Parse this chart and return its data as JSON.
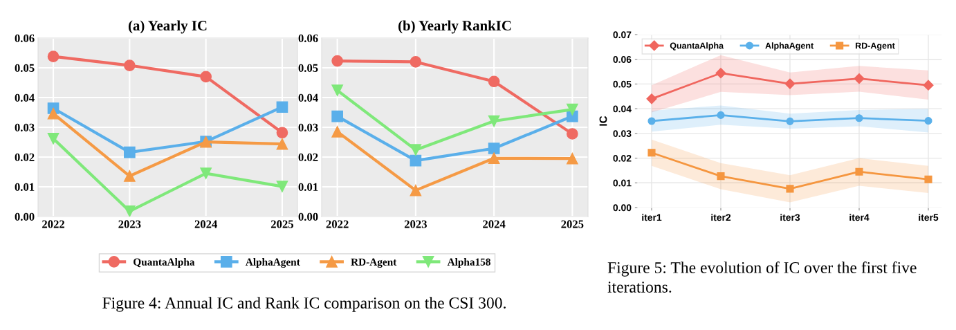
{
  "chart_data": [
    {
      "type": "line",
      "title": "(a) Yearly IC",
      "x": [
        2022,
        2023,
        2024,
        2025
      ],
      "xlim": [
        2021.8,
        2025.2
      ],
      "xticks": [
        2022,
        2023,
        2024,
        2025
      ],
      "ylim": [
        0,
        0.06
      ],
      "yticks": [
        {
          "value": 0,
          "label": "0.00"
        },
        {
          "value": 0.01,
          "label": "0.01"
        },
        {
          "value": 0.02,
          "label": "0.02"
        },
        {
          "value": 0.03,
          "label": "0.03"
        },
        {
          "value": 0.04,
          "label": "0.04"
        },
        {
          "value": 0.05,
          "label": "0.05"
        },
        {
          "value": 0.06,
          "label": "0.06"
        }
      ],
      "grid": true,
      "legend": "bottom",
      "annotations": [
        "Figure 4: Annual IC and Rank IC comparison on the CSI 300."
      ],
      "series": [
        {
          "name": "QuantaAlpha",
          "color": "#ef6a62",
          "marker": "circle",
          "values": [
            0.0538,
            0.0508,
            0.047,
            0.0282
          ]
        },
        {
          "name": "AlphaAgent",
          "color": "#5aafea",
          "marker": "square",
          "values": [
            0.0364,
            0.0216,
            0.0252,
            0.0368
          ]
        },
        {
          "name": "RD-Agent",
          "color": "#f59a45",
          "marker": "triangle",
          "values": [
            0.0346,
            0.0136,
            0.0251,
            0.0244
          ]
        },
        {
          "name": "Alpha158",
          "color": "#7fe87a",
          "marker": "triangle_down",
          "values": [
            0.0262,
            0.0018,
            0.0145,
            0.0101
          ]
        }
      ]
    },
    {
      "type": "line",
      "title": "(b) Yearly RankIC",
      "x": [
        2022,
        2023,
        2024,
        2025
      ],
      "xlim": [
        2021.8,
        2025.2
      ],
      "xticks": [
        2022,
        2023,
        2024,
        2025
      ],
      "ylim": [
        0,
        0.06
      ],
      "yticks": [
        {
          "value": 0,
          "label": "0.00"
        },
        {
          "value": 0.01,
          "label": "0.01"
        },
        {
          "value": 0.02,
          "label": "0.02"
        },
        {
          "value": 0.03,
          "label": "0.03"
        },
        {
          "value": 0.04,
          "label": "0.04"
        },
        {
          "value": 0.05,
          "label": "0.05"
        },
        {
          "value": 0.06,
          "label": "0.06"
        }
      ],
      "grid": true,
      "series": [
        {
          "color": "#ef6a62",
          "marker": "circle",
          "values": [
            0.0523,
            0.052,
            0.0454,
            0.0278
          ]
        },
        {
          "color": "#5aafea",
          "marker": "square",
          "values": [
            0.0337,
            0.0188,
            0.0229,
            0.0337
          ]
        },
        {
          "color": "#f59a45",
          "marker": "triangle",
          "values": [
            0.0285,
            0.0088,
            0.0196,
            0.0195
          ]
        },
        {
          "color": "#7fe87a",
          "marker": "triangle_down",
          "values": [
            0.0424,
            0.0224,
            0.0321,
            0.036
          ]
        }
      ]
    },
    {
      "type": "line",
      "ylabel": "IC",
      "categories": [
        "iter1",
        "iter2",
        "iter3",
        "iter4",
        "iter5"
      ],
      "ylim": [
        0,
        0.07
      ],
      "yticks": [
        {
          "value": 0,
          "label": "0.00"
        },
        {
          "value": 0.01,
          "label": "0.01"
        },
        {
          "value": 0.02,
          "label": "0.02"
        },
        {
          "value": 0.03,
          "label": "0.03"
        },
        {
          "value": 0.04,
          "label": "0.04"
        },
        {
          "value": 0.05,
          "label": "0.05"
        },
        {
          "value": 0.06,
          "label": "0.06"
        },
        {
          "value": 0.07,
          "label": "0.07"
        }
      ],
      "grid": true,
      "legend": "top left",
      "annotations": [
        "Figure 5: The evolution of IC over the first five iterations."
      ],
      "series": [
        {
          "name": "QuantaAlpha",
          "color": "#f0665e",
          "marker": "diamond",
          "values": [
            0.044,
            0.0544,
            0.0501,
            0.0522,
            0.0495
          ],
          "lower": [
            0.0385,
            0.0468,
            0.0455,
            0.0469,
            0.0437
          ],
          "upper": [
            0.0495,
            0.0617,
            0.0547,
            0.0573,
            0.0555
          ]
        },
        {
          "name": "AlphaAgent",
          "color": "#5ab0ea",
          "marker": "circle",
          "values": [
            0.035,
            0.0374,
            0.0349,
            0.0362,
            0.0351
          ],
          "lower": [
            0.0307,
            0.0335,
            0.0319,
            0.0329,
            0.0304
          ],
          "upper": [
            0.0392,
            0.0413,
            0.038,
            0.0395,
            0.04
          ]
        },
        {
          "name": "RD-Agent",
          "color": "#f5963f",
          "marker": "square",
          "values": [
            0.0222,
            0.0127,
            0.0076,
            0.0145,
            0.0114
          ],
          "lower": [
            0.0169,
            0.0074,
            0.0021,
            0.0088,
            0.0059
          ],
          "upper": [
            0.0275,
            0.018,
            0.0131,
            0.02,
            0.0169
          ]
        }
      ]
    }
  ]
}
